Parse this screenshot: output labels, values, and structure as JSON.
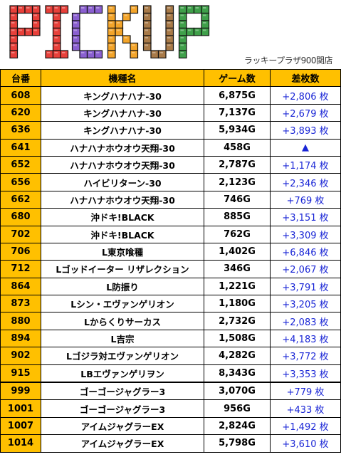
{
  "banner": {
    "title": "PICKUP",
    "subtitle": "ラッキープラザ900関店",
    "letter_colors": [
      "#e8403a",
      "#e8403a",
      "#8a5fd0",
      "#f4a52a",
      "#a87a48",
      "#3fa04a"
    ]
  },
  "table": {
    "headers": [
      "台番",
      "機種名",
      "ゲーム数",
      "差枚数"
    ],
    "rows": [
      {
        "num": "608",
        "name": "キングハナハナ-30",
        "games": "6,875G",
        "diff": "+2,806 枚"
      },
      {
        "num": "620",
        "name": "キングハナハナ-30",
        "games": "7,137G",
        "diff": "+2,679 枚"
      },
      {
        "num": "636",
        "name": "キングハナハナ-30",
        "games": "5,934G",
        "diff": "+3,893 枚"
      },
      {
        "num": "641",
        "name": "ハナハナホウオウ天翔-30",
        "games": "458G",
        "diff": "▲"
      },
      {
        "num": "652",
        "name": "ハナハナホウオウ天翔-30",
        "games": "2,787G",
        "diff": "+1,174 枚"
      },
      {
        "num": "656",
        "name": "ハイビリターン-30",
        "games": "2,123G",
        "diff": "+2,346 枚"
      },
      {
        "num": "662",
        "name": "ハナハナホウオウ天翔-30",
        "games": "746G",
        "diff": "+769 枚"
      },
      {
        "num": "680",
        "name": "沖ドキ!BLACK",
        "games": "885G",
        "diff": "+3,151 枚"
      },
      {
        "num": "702",
        "name": "沖ドキ!BLACK",
        "games": "762G",
        "diff": "+3,309 枚"
      },
      {
        "num": "706",
        "name": "L東京喰種",
        "games": "1,402G",
        "diff": "+6,846 枚"
      },
      {
        "num": "712",
        "name": "Lゴッドイーター リザレクション",
        "games": "346G",
        "diff": "+2,067 枚"
      },
      {
        "num": "864",
        "name": "L防振り",
        "games": "1,221G",
        "diff": "+3,791 枚"
      },
      {
        "num": "873",
        "name": "Lシン・エヴァンゲリオン",
        "games": "1,180G",
        "diff": "+3,205 枚"
      },
      {
        "num": "880",
        "name": "Lからくりサーカス",
        "games": "2,732G",
        "diff": "+2,083 枚"
      },
      {
        "num": "894",
        "name": "L吉宗",
        "games": "1,508G",
        "diff": "+4,183 枚"
      },
      {
        "num": "902",
        "name": "Lゴジラ対エヴァンゲリオン",
        "games": "4,282G",
        "diff": "+3,772 枚"
      },
      {
        "num": "915",
        "name": "LBエヴァンゲリヲン",
        "games": "8,343G",
        "diff": "+3,353 枚"
      },
      {
        "num": "999",
        "name": "ゴーゴージャグラー3",
        "games": "3,070G",
        "diff": "+779 枚"
      },
      {
        "num": "1001",
        "name": "ゴーゴージャグラー3",
        "games": "956G",
        "diff": "+433 枚"
      },
      {
        "num": "1007",
        "name": "アイムジャグラーEX",
        "games": "2,824G",
        "diff": "+1,492 枚"
      },
      {
        "num": "1014",
        "name": "アイムジャグラーEX",
        "games": "5,798G",
        "diff": "+3,610 枚"
      }
    ]
  }
}
